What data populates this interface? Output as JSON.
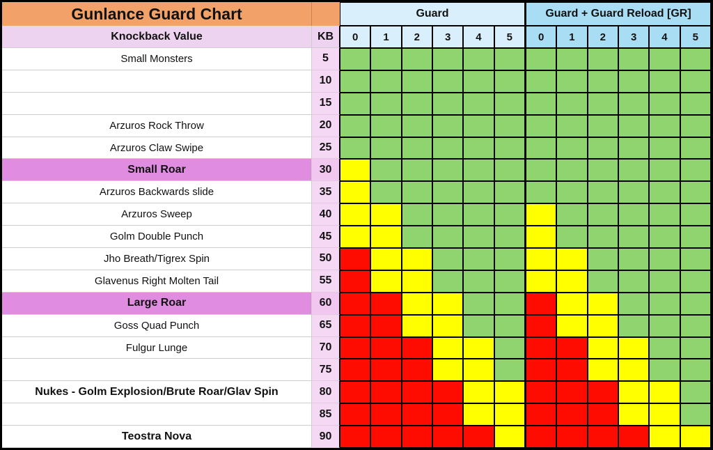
{
  "labels": {
    "knockback": "Knockback Value",
    "kb": "KB"
  },
  "colors": {
    "orange": "#f2a269",
    "pink_header": "#eed3f0",
    "kb_pink": "#f5d8f3",
    "kb_pink_roar": "#f1c7ef",
    "roar_pink": "#e08ce0",
    "light_blue": "#d9f0fc",
    "dark_blue": "#a8ddf4",
    "green": "#90d470",
    "yellow": "#ffff00",
    "red": "#fe0b02"
  },
  "chart_data": {
    "type": "heatmap",
    "title": "Gunlance Guard Chart",
    "col_groups": [
      {
        "label": "Guard",
        "cols": [
          "0",
          "1",
          "2",
          "3",
          "4",
          "5"
        ]
      },
      {
        "label": "Guard + Guard Reload [GR]",
        "cols": [
          "0",
          "1",
          "2",
          "3",
          "4",
          "5"
        ]
      }
    ],
    "cell_states": [
      "green",
      "yellow",
      "red"
    ],
    "rows": [
      {
        "label": "Small Monsters",
        "kb": "5",
        "bold": false,
        "roar": false,
        "cells": [
          "green",
          "green",
          "green",
          "green",
          "green",
          "green",
          "green",
          "green",
          "green",
          "green",
          "green",
          "green"
        ]
      },
      {
        "label": "",
        "kb": "10",
        "bold": false,
        "roar": false,
        "cells": [
          "green",
          "green",
          "green",
          "green",
          "green",
          "green",
          "green",
          "green",
          "green",
          "green",
          "green",
          "green"
        ]
      },
      {
        "label": "",
        "kb": "15",
        "bold": false,
        "roar": false,
        "cells": [
          "green",
          "green",
          "green",
          "green",
          "green",
          "green",
          "green",
          "green",
          "green",
          "green",
          "green",
          "green"
        ]
      },
      {
        "label": "Arzuros Rock Throw",
        "kb": "20",
        "bold": false,
        "roar": false,
        "cells": [
          "green",
          "green",
          "green",
          "green",
          "green",
          "green",
          "green",
          "green",
          "green",
          "green",
          "green",
          "green"
        ]
      },
      {
        "label": "Arzuros Claw Swipe",
        "kb": "25",
        "bold": false,
        "roar": false,
        "cells": [
          "green",
          "green",
          "green",
          "green",
          "green",
          "green",
          "green",
          "green",
          "green",
          "green",
          "green",
          "green"
        ]
      },
      {
        "label": "Small Roar",
        "kb": "30",
        "bold": true,
        "roar": true,
        "cells": [
          "yellow",
          "green",
          "green",
          "green",
          "green",
          "green",
          "green",
          "green",
          "green",
          "green",
          "green",
          "green"
        ]
      },
      {
        "label": "Arzuros Backwards slide",
        "kb": "35",
        "bold": false,
        "roar": false,
        "cells": [
          "yellow",
          "green",
          "green",
          "green",
          "green",
          "green",
          "green",
          "green",
          "green",
          "green",
          "green",
          "green"
        ]
      },
      {
        "label": "Arzuros Sweep",
        "kb": "40",
        "bold": false,
        "roar": false,
        "cells": [
          "yellow",
          "yellow",
          "green",
          "green",
          "green",
          "green",
          "yellow",
          "green",
          "green",
          "green",
          "green",
          "green"
        ]
      },
      {
        "label": "Golm Double Punch",
        "kb": "45",
        "bold": false,
        "roar": false,
        "cells": [
          "yellow",
          "yellow",
          "green",
          "green",
          "green",
          "green",
          "yellow",
          "green",
          "green",
          "green",
          "green",
          "green"
        ]
      },
      {
        "label": "Jho Breath/Tigrex Spin",
        "kb": "50",
        "bold": false,
        "roar": false,
        "cells": [
          "red",
          "yellow",
          "yellow",
          "green",
          "green",
          "green",
          "yellow",
          "yellow",
          "green",
          "green",
          "green",
          "green"
        ]
      },
      {
        "label": "Glavenus Right Molten Tail",
        "kb": "55",
        "bold": false,
        "roar": false,
        "cells": [
          "red",
          "yellow",
          "yellow",
          "green",
          "green",
          "green",
          "yellow",
          "yellow",
          "green",
          "green",
          "green",
          "green"
        ]
      },
      {
        "label": "Large Roar",
        "kb": "60",
        "bold": true,
        "roar": true,
        "cells": [
          "red",
          "red",
          "yellow",
          "yellow",
          "green",
          "green",
          "red",
          "yellow",
          "yellow",
          "green",
          "green",
          "green"
        ]
      },
      {
        "label": "Goss Quad Punch",
        "kb": "65",
        "bold": false,
        "roar": false,
        "cells": [
          "red",
          "red",
          "yellow",
          "yellow",
          "green",
          "green",
          "red",
          "yellow",
          "yellow",
          "green",
          "green",
          "green"
        ]
      },
      {
        "label": "Fulgur Lunge",
        "kb": "70",
        "bold": false,
        "roar": false,
        "cells": [
          "red",
          "red",
          "red",
          "yellow",
          "yellow",
          "green",
          "red",
          "red",
          "yellow",
          "yellow",
          "green",
          "green"
        ]
      },
      {
        "label": "",
        "kb": "75",
        "bold": false,
        "roar": false,
        "cells": [
          "red",
          "red",
          "red",
          "yellow",
          "yellow",
          "green",
          "red",
          "red",
          "yellow",
          "yellow",
          "green",
          "green"
        ]
      },
      {
        "label": "Nukes - Golm Explosion/Brute Roar/Glav Spin",
        "kb": "80",
        "bold": true,
        "roar": false,
        "cells": [
          "red",
          "red",
          "red",
          "red",
          "yellow",
          "yellow",
          "red",
          "red",
          "red",
          "yellow",
          "yellow",
          "green"
        ]
      },
      {
        "label": "",
        "kb": "85",
        "bold": false,
        "roar": false,
        "cells": [
          "red",
          "red",
          "red",
          "red",
          "yellow",
          "yellow",
          "red",
          "red",
          "red",
          "yellow",
          "yellow",
          "green"
        ]
      },
      {
        "label": "Teostra Nova",
        "kb": "90",
        "bold": true,
        "roar": false,
        "cells": [
          "red",
          "red",
          "red",
          "red",
          "red",
          "yellow",
          "red",
          "red",
          "red",
          "red",
          "yellow",
          "yellow"
        ]
      }
    ]
  }
}
